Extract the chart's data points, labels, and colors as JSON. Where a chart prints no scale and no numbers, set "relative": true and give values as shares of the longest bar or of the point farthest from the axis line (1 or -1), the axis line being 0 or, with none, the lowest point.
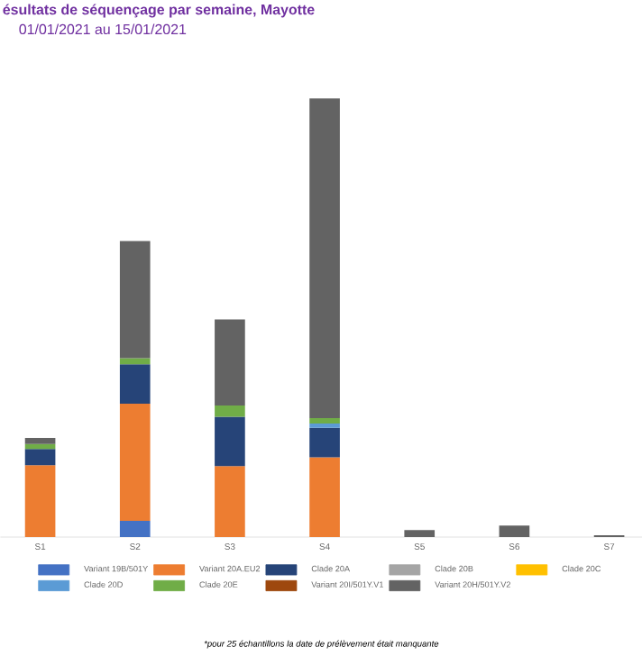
{
  "chart_data": {
    "type": "bar",
    "title": "ésultats de séquençage par semaine, Mayotte",
    "subtitle": "01/01/2021 au 15/01/2021",
    "categories": [
      "S1",
      "S2",
      "S3",
      "S4",
      "S5",
      "S6",
      "S7"
    ],
    "stacked": true,
    "relative": true,
    "legend": "bottom",
    "series": [
      {
        "name": "Variant 19B/501Y",
        "color": "#4472c4",
        "values": [
          null,
          0.037,
          null,
          null,
          null,
          null,
          null
        ]
      },
      {
        "name": "Variant 20A.EU2",
        "color": "#ed7d31",
        "values": [
          0.164,
          0.267,
          0.162,
          0.182,
          null,
          null,
          null
        ]
      },
      {
        "name": "Clade 20A",
        "color": "#264478",
        "values": [
          0.037,
          0.09,
          0.112,
          0.067,
          null,
          null,
          null
        ]
      },
      {
        "name": "Clade 20B",
        "color": "#a5a5a5",
        "values": [
          null,
          null,
          null,
          null,
          null,
          null,
          null
        ]
      },
      {
        "name": "Clade 20C",
        "color": "#ffc000",
        "values": [
          null,
          null,
          null,
          null,
          null,
          null,
          null
        ]
      },
      {
        "name": "Clade 20D",
        "color": "#5b9bd5",
        "values": [
          null,
          null,
          null,
          0.01,
          null,
          null,
          null
        ]
      },
      {
        "name": "Clade 20E",
        "color": "#70ad47",
        "values": [
          0.011,
          0.014,
          0.026,
          0.012,
          null,
          null,
          null
        ]
      },
      {
        "name": "Variant 20I/501Y.V1",
        "color": "#9e480e",
        "values": [
          null,
          null,
          null,
          null,
          null,
          null,
          null
        ]
      },
      {
        "name": "Variant 20H/501Y.V2",
        "color": "#636363",
        "values": [
          0.014,
          0.267,
          0.196,
          0.729,
          0.016,
          0.026,
          0.004
        ]
      }
    ],
    "annotations": [
      "*pour 25 échantillons la date de prélèvement était manquante"
    ]
  }
}
